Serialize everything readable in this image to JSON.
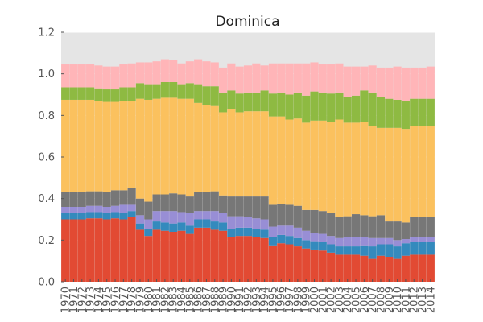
{
  "chart_data": {
    "type": "bar",
    "stacked": true,
    "title": "Dominica",
    "xlabel": "",
    "ylabel": "",
    "ylim": [
      0,
      1.2
    ],
    "yticks": [
      "0.0",
      "0.2",
      "0.4",
      "0.6",
      "0.8",
      "1.0",
      "1.2"
    ],
    "grid": true,
    "background": "#e5e5e5",
    "categories": [
      "1970",
      "1971",
      "1972",
      "1973",
      "1974",
      "1975",
      "1976",
      "1977",
      "1978",
      "1979",
      "1980",
      "1981",
      "1982",
      "1983",
      "1984",
      "1985",
      "1986",
      "1987",
      "1988",
      "1989",
      "1990",
      "1991",
      "1992",
      "1993",
      "1994",
      "1995",
      "1996",
      "1997",
      "1998",
      "1999",
      "2000",
      "2001",
      "2002",
      "2003",
      "2004",
      "2005",
      "2006",
      "2007",
      "2008",
      "2009",
      "2010",
      "2011",
      "2012",
      "2013",
      "2014"
    ],
    "series": [
      {
        "color": "#e24a33",
        "values": [
          0.3,
          0.3,
          0.3,
          0.305,
          0.305,
          0.3,
          0.305,
          0.3,
          0.31,
          0.25,
          0.22,
          0.25,
          0.245,
          0.24,
          0.245,
          0.23,
          0.26,
          0.26,
          0.25,
          0.245,
          0.215,
          0.22,
          0.22,
          0.215,
          0.21,
          0.175,
          0.185,
          0.18,
          0.17,
          0.16,
          0.155,
          0.15,
          0.14,
          0.13,
          0.13,
          0.13,
          0.125,
          0.11,
          0.125,
          0.12,
          0.11,
          0.125,
          0.13,
          0.13,
          0.13
        ]
      },
      {
        "color": "#348abd",
        "values": [
          0.03,
          0.03,
          0.03,
          0.03,
          0.03,
          0.03,
          0.03,
          0.03,
          0.03,
          0.03,
          0.035,
          0.04,
          0.04,
          0.04,
          0.04,
          0.04,
          0.04,
          0.04,
          0.04,
          0.04,
          0.04,
          0.04,
          0.04,
          0.04,
          0.04,
          0.04,
          0.04,
          0.04,
          0.04,
          0.04,
          0.04,
          0.04,
          0.04,
          0.04,
          0.04,
          0.04,
          0.05,
          0.06,
          0.055,
          0.06,
          0.06,
          0.06,
          0.06,
          0.06,
          0.06
        ]
      },
      {
        "color": "#988ed5",
        "values": [
          0.03,
          0.03,
          0.03,
          0.03,
          0.03,
          0.03,
          0.03,
          0.04,
          0.03,
          0.04,
          0.045,
          0.05,
          0.055,
          0.06,
          0.05,
          0.06,
          0.04,
          0.04,
          0.05,
          0.045,
          0.06,
          0.055,
          0.05,
          0.05,
          0.05,
          0.05,
          0.045,
          0.05,
          0.05,
          0.045,
          0.04,
          0.04,
          0.04,
          0.04,
          0.045,
          0.045,
          0.04,
          0.04,
          0.03,
          0.03,
          0.03,
          0.02,
          0.025,
          0.025,
          0.025
        ]
      },
      {
        "color": "#777777",
        "values": [
          0.07,
          0.07,
          0.07,
          0.07,
          0.07,
          0.07,
          0.075,
          0.07,
          0.08,
          0.08,
          0.085,
          0.08,
          0.08,
          0.085,
          0.085,
          0.08,
          0.09,
          0.09,
          0.095,
          0.085,
          0.095,
          0.095,
          0.1,
          0.105,
          0.11,
          0.105,
          0.105,
          0.1,
          0.105,
          0.1,
          0.11,
          0.11,
          0.11,
          0.1,
          0.1,
          0.11,
          0.105,
          0.105,
          0.11,
          0.08,
          0.09,
          0.08,
          0.095,
          0.095,
          0.095
        ]
      },
      {
        "color": "#fbc15e",
        "values": [
          0.445,
          0.445,
          0.445,
          0.44,
          0.435,
          0.435,
          0.425,
          0.43,
          0.42,
          0.48,
          0.49,
          0.46,
          0.465,
          0.46,
          0.46,
          0.47,
          0.43,
          0.42,
          0.41,
          0.4,
          0.42,
          0.405,
          0.41,
          0.41,
          0.41,
          0.425,
          0.42,
          0.41,
          0.42,
          0.42,
          0.43,
          0.435,
          0.44,
          0.47,
          0.45,
          0.44,
          0.45,
          0.435,
          0.42,
          0.45,
          0.45,
          0.45,
          0.44,
          0.44,
          0.44
        ]
      },
      {
        "color": "#8eba42",
        "values": [
          0.06,
          0.06,
          0.06,
          0.06,
          0.06,
          0.06,
          0.06,
          0.065,
          0.065,
          0.075,
          0.075,
          0.07,
          0.075,
          0.075,
          0.07,
          0.075,
          0.09,
          0.09,
          0.095,
          0.095,
          0.09,
          0.09,
          0.09,
          0.09,
          0.1,
          0.11,
          0.115,
          0.12,
          0.125,
          0.13,
          0.14,
          0.135,
          0.135,
          0.13,
          0.125,
          0.13,
          0.15,
          0.16,
          0.15,
          0.14,
          0.135,
          0.135,
          0.13,
          0.13,
          0.13
        ]
      },
      {
        "color": "#ffb5b8",
        "values": [
          0.11,
          0.11,
          0.11,
          0.11,
          0.11,
          0.11,
          0.11,
          0.11,
          0.115,
          0.1,
          0.105,
          0.11,
          0.11,
          0.105,
          0.1,
          0.105,
          0.12,
          0.12,
          0.115,
          0.12,
          0.13,
          0.13,
          0.13,
          0.14,
          0.12,
          0.145,
          0.14,
          0.15,
          0.14,
          0.155,
          0.14,
          0.135,
          0.14,
          0.14,
          0.145,
          0.14,
          0.115,
          0.13,
          0.14,
          0.15,
          0.16,
          0.16,
          0.15,
          0.15,
          0.155
        ]
      }
    ]
  }
}
